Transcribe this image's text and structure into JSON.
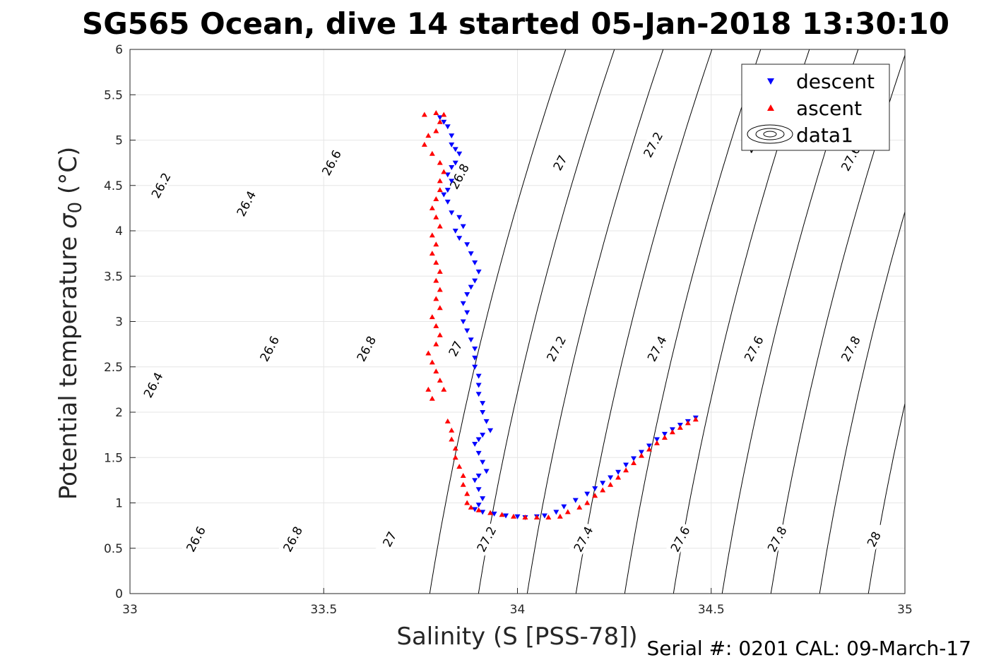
{
  "chart_data": {
    "type": "scatter",
    "title": "SG565 Ocean, dive 14 started 05-Jan-2018 13:30:10",
    "xlabel": "Salinity (S [PSS-78])",
    "ylabel_main": "Potential temperature ",
    "ylabel_sym": "σ",
    "ylabel_sub": "0",
    "ylabel_unit": " (°C)",
    "xlim": [
      33,
      35
    ],
    "ylim": [
      0,
      6
    ],
    "xticks": [
      "33",
      "33.5",
      "34",
      "34.5",
      "35"
    ],
    "yticks": [
      "0",
      "0.5",
      "1",
      "1.5",
      "2",
      "2.5",
      "3",
      "3.5",
      "4",
      "4.5",
      "5",
      "5.5",
      "6"
    ],
    "grid": true,
    "legend_position": "top-right",
    "footer": "Serial #: 0201  CAL: 09-March-17",
    "colors": {
      "descent": "#0000ff",
      "ascent": "#ff0000",
      "contour": "#000000",
      "grid": "#e6e6e6"
    },
    "series": [
      {
        "name": "descent",
        "marker": "triangle-down",
        "points": [
          [
            33.8,
            5.25
          ],
          [
            33.81,
            5.2
          ],
          [
            33.82,
            5.15
          ],
          [
            33.83,
            5.05
          ],
          [
            33.83,
            4.95
          ],
          [
            33.84,
            4.9
          ],
          [
            33.85,
            4.85
          ],
          [
            33.84,
            4.75
          ],
          [
            33.83,
            4.7
          ],
          [
            33.82,
            4.62
          ],
          [
            33.83,
            4.55
          ],
          [
            33.82,
            4.45
          ],
          [
            33.81,
            4.4
          ],
          [
            33.82,
            4.32
          ],
          [
            33.83,
            4.2
          ],
          [
            33.85,
            4.15
          ],
          [
            33.86,
            4.05
          ],
          [
            33.84,
            4.0
          ],
          [
            33.85,
            3.92
          ],
          [
            33.87,
            3.85
          ],
          [
            33.88,
            3.75
          ],
          [
            33.89,
            3.65
          ],
          [
            33.9,
            3.55
          ],
          [
            33.89,
            3.45
          ],
          [
            33.88,
            3.38
          ],
          [
            33.87,
            3.3
          ],
          [
            33.86,
            3.2
          ],
          [
            33.87,
            3.1
          ],
          [
            33.86,
            3.0
          ],
          [
            33.87,
            2.9
          ],
          [
            33.88,
            2.8
          ],
          [
            33.89,
            2.7
          ],
          [
            33.89,
            2.6
          ],
          [
            33.89,
            2.5
          ],
          [
            33.9,
            2.4
          ],
          [
            33.9,
            2.3
          ],
          [
            33.9,
            2.2
          ],
          [
            33.91,
            2.1
          ],
          [
            33.91,
            2.0
          ],
          [
            33.92,
            1.9
          ],
          [
            33.93,
            1.8
          ],
          [
            33.91,
            1.75
          ],
          [
            33.9,
            1.7
          ],
          [
            33.89,
            1.65
          ],
          [
            33.9,
            1.55
          ],
          [
            33.91,
            1.45
          ],
          [
            33.92,
            1.35
          ],
          [
            33.9,
            1.3
          ],
          [
            33.89,
            1.25
          ],
          [
            33.9,
            1.15
          ],
          [
            33.91,
            1.05
          ],
          [
            33.9,
            0.98
          ],
          [
            33.89,
            0.93
          ],
          [
            33.91,
            0.9
          ],
          [
            33.94,
            0.88
          ],
          [
            33.97,
            0.86
          ],
          [
            34.0,
            0.85
          ],
          [
            34.02,
            0.84
          ],
          [
            34.05,
            0.85
          ],
          [
            34.07,
            0.86
          ],
          [
            34.1,
            0.9
          ],
          [
            34.12,
            0.96
          ],
          [
            34.15,
            1.03
          ],
          [
            34.18,
            1.1
          ],
          [
            34.2,
            1.16
          ],
          [
            34.22,
            1.22
          ],
          [
            34.24,
            1.28
          ],
          [
            34.26,
            1.34
          ],
          [
            34.28,
            1.42
          ],
          [
            34.3,
            1.49
          ],
          [
            34.32,
            1.56
          ],
          [
            34.34,
            1.63
          ],
          [
            34.36,
            1.7
          ],
          [
            34.38,
            1.76
          ],
          [
            34.4,
            1.81
          ],
          [
            34.42,
            1.86
          ],
          [
            34.44,
            1.9
          ],
          [
            34.46,
            1.94
          ]
        ]
      },
      {
        "name": "ascent",
        "marker": "triangle-up",
        "points": [
          [
            33.76,
            5.28
          ],
          [
            33.79,
            5.3
          ],
          [
            33.81,
            5.28
          ],
          [
            33.8,
            5.2
          ],
          [
            33.79,
            5.1
          ],
          [
            33.77,
            5.05
          ],
          [
            33.76,
            4.95
          ],
          [
            33.78,
            4.85
          ],
          [
            33.8,
            4.75
          ],
          [
            33.81,
            4.65
          ],
          [
            33.8,
            4.55
          ],
          [
            33.8,
            4.45
          ],
          [
            33.79,
            4.35
          ],
          [
            33.78,
            4.25
          ],
          [
            33.79,
            4.15
          ],
          [
            33.8,
            4.05
          ],
          [
            33.78,
            3.95
          ],
          [
            33.79,
            3.85
          ],
          [
            33.78,
            3.75
          ],
          [
            33.79,
            3.65
          ],
          [
            33.8,
            3.55
          ],
          [
            33.79,
            3.45
          ],
          [
            33.8,
            3.35
          ],
          [
            33.79,
            3.25
          ],
          [
            33.8,
            3.15
          ],
          [
            33.78,
            3.05
          ],
          [
            33.79,
            2.95
          ],
          [
            33.8,
            2.85
          ],
          [
            33.79,
            2.75
          ],
          [
            33.77,
            2.65
          ],
          [
            33.78,
            2.55
          ],
          [
            33.79,
            2.45
          ],
          [
            33.8,
            2.35
          ],
          [
            33.77,
            2.25
          ],
          [
            33.78,
            2.15
          ],
          [
            33.81,
            2.25
          ],
          [
            33.82,
            1.9
          ],
          [
            33.83,
            1.8
          ],
          [
            33.83,
            1.7
          ],
          [
            33.84,
            1.6
          ],
          [
            33.84,
            1.5
          ],
          [
            33.85,
            1.4
          ],
          [
            33.86,
            1.3
          ],
          [
            33.86,
            1.2
          ],
          [
            33.87,
            1.1
          ],
          [
            33.87,
            1.0
          ],
          [
            33.88,
            0.95
          ],
          [
            33.9,
            0.92
          ],
          [
            33.93,
            0.89
          ],
          [
            33.96,
            0.87
          ],
          [
            33.99,
            0.85
          ],
          [
            34.02,
            0.84
          ],
          [
            34.05,
            0.84
          ],
          [
            34.08,
            0.84
          ],
          [
            34.11,
            0.85
          ],
          [
            34.13,
            0.9
          ],
          [
            34.16,
            0.95
          ],
          [
            34.18,
            1.0
          ],
          [
            34.2,
            1.08
          ],
          [
            34.22,
            1.14
          ],
          [
            34.24,
            1.2
          ],
          [
            34.26,
            1.28
          ],
          [
            34.28,
            1.36
          ],
          [
            34.3,
            1.44
          ],
          [
            34.32,
            1.52
          ],
          [
            34.34,
            1.59
          ],
          [
            34.36,
            1.66
          ],
          [
            34.38,
            1.72
          ],
          [
            34.4,
            1.78
          ],
          [
            34.42,
            1.83
          ],
          [
            34.44,
            1.88
          ],
          [
            34.46,
            1.92
          ]
        ]
      }
    ],
    "legend": [
      {
        "label": "descent",
        "marker": "triangle-down",
        "color": "#0000ff"
      },
      {
        "label": "ascent",
        "marker": "triangle-up",
        "color": "#ff0000"
      },
      {
        "label": "data1",
        "marker": "contour",
        "color": "#000000"
      }
    ],
    "contours": [
      {
        "level": 26.2,
        "label": "26.2",
        "points": [
          [
            33.03,
            6
          ],
          [
            33.0,
            5.78
          ]
        ],
        "label_at": [
          33.08,
          4.5
        ]
      },
      {
        "level": 26.4,
        "label": "26.4",
        "points": [
          [
            33.27,
            6
          ],
          [
            33.0,
            4.0
          ]
        ],
        "label_at": [
          33.3,
          4.3
        ]
      },
      {
        "level": 26.6,
        "label": "26.6",
        "points": [
          [
            33.52,
            6
          ],
          [
            33.0,
            2.0
          ]
        ],
        "label_at": [
          33.52,
          4.75
        ]
      },
      {
        "level": 26.8,
        "label": "26.8",
        "points": [
          [
            33.76,
            6
          ],
          [
            33.0,
            0.0
          ]
        ],
        "label_at": [
          33.85,
          4.6
        ]
      },
      {
        "level": 27.0,
        "label": "27",
        "points": [
          [
            33.99,
            6
          ],
          [
            33.0,
            -2.0
          ]
        ],
        "label_at": [
          34.11,
          4.75
        ]
      },
      {
        "level": 27.2,
        "label": "27.2",
        "points": [
          [
            34.22,
            6
          ],
          [
            33.0,
            -4.0
          ]
        ],
        "label_at": [
          34.35,
          4.95
        ]
      },
      {
        "level": 27.4,
        "label": "27.4",
        "points": [
          [
            34.45,
            6
          ],
          [
            33.0,
            -6.0
          ]
        ],
        "label_at": [
          34.61,
          5.0
        ]
      },
      {
        "level": 27.6,
        "label": "27.6",
        "points": [
          [
            34.68,
            6
          ],
          [
            33.0,
            -8.0
          ]
        ],
        "label_at": [
          34.86,
          4.8
        ]
      }
    ],
    "contour_labels_extra": [
      {
        "label": "26.4",
        "at": [
          33.06,
          2.3
        ]
      },
      {
        "label": "26.6",
        "at": [
          33.36,
          2.7
        ]
      },
      {
        "label": "26.8",
        "at": [
          33.61,
          2.7
        ]
      },
      {
        "label": "27",
        "at": [
          33.84,
          2.7
        ]
      },
      {
        "label": "27.2",
        "at": [
          34.1,
          2.7
        ]
      },
      {
        "label": "27.4",
        "at": [
          34.36,
          2.7
        ]
      },
      {
        "label": "27.6",
        "at": [
          34.61,
          2.7
        ]
      },
      {
        "label": "27.8",
        "at": [
          34.86,
          2.7
        ]
      },
      {
        "label": "26.6",
        "at": [
          33.17,
          0.6
        ]
      },
      {
        "label": "26.8",
        "at": [
          33.42,
          0.6
        ]
      },
      {
        "label": "27",
        "at": [
          33.67,
          0.6
        ]
      },
      {
        "label": "27.2",
        "at": [
          33.92,
          0.6
        ]
      },
      {
        "label": "27.4",
        "at": [
          34.17,
          0.6
        ]
      },
      {
        "label": "27.6",
        "at": [
          34.42,
          0.6
        ]
      },
      {
        "label": "27.8",
        "at": [
          34.67,
          0.6
        ]
      },
      {
        "label": "28",
        "at": [
          34.92,
          0.6
        ]
      }
    ]
  }
}
